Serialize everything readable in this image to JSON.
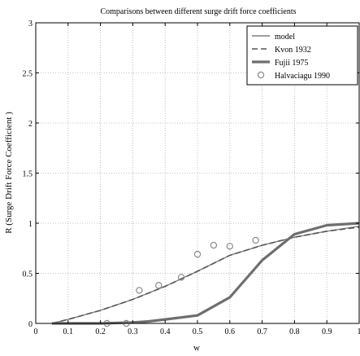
{
  "chart_data": {
    "type": "line",
    "title": "Comparisons between different surge drift force coefficients",
    "xlabel": "w",
    "ylabel": "R (Surge Drift Force Coefficient )",
    "xlim": [
      0,
      1
    ],
    "ylim": [
      0,
      3
    ],
    "xticks": [
      0,
      0.1,
      0.2,
      0.3,
      0.4,
      0.5,
      0.6,
      0.7,
      0.8,
      0.9,
      1
    ],
    "xtick_labels": [
      "0",
      "0.1",
      "0.2",
      "0.3",
      "0.4",
      "0.5",
      "0.6",
      "0.7",
      "0.8",
      "0.9",
      "1"
    ],
    "yticks": [
      0,
      0.5,
      1,
      1.5,
      2,
      2.5,
      3
    ],
    "ytick_labels": [
      "0",
      "0.5",
      "1",
      "1.5",
      "2",
      "2.5",
      "3"
    ],
    "grid": true,
    "legend_position": "top-right",
    "series": [
      {
        "name": "model",
        "style": "line",
        "color": "#7f7f7f",
        "x": [
          0.05,
          0.1,
          0.2,
          0.3,
          0.4,
          0.5,
          0.6,
          0.7,
          0.8,
          0.9,
          1.0
        ],
        "y": [
          0.0,
          0.04,
          0.13,
          0.24,
          0.37,
          0.52,
          0.68,
          0.78,
          0.86,
          0.92,
          0.97
        ]
      },
      {
        "name": "Kvon 1932",
        "style": "dash",
        "color": "#555555",
        "x": [
          0.05,
          0.1,
          0.2,
          0.3,
          0.4,
          0.5,
          0.6,
          0.7,
          0.8,
          0.9,
          1.0
        ],
        "y": [
          0.0,
          0.04,
          0.13,
          0.24,
          0.37,
          0.52,
          0.68,
          0.78,
          0.86,
          0.92,
          0.96
        ]
      },
      {
        "name": "Fujii 1975",
        "style": "thick-line",
        "color": "#6e6e6e",
        "x": [
          0.05,
          0.1,
          0.2,
          0.3,
          0.35,
          0.4,
          0.5,
          0.6,
          0.7,
          0.8,
          0.9,
          1.0
        ],
        "y": [
          0.0,
          0.0,
          0.0,
          0.01,
          0.02,
          0.04,
          0.08,
          0.26,
          0.63,
          0.89,
          0.98,
          1.0
        ]
      },
      {
        "name": "Halvaciagu 1990",
        "style": "circle",
        "color": "#8a8a8a",
        "x": [
          0.22,
          0.28,
          0.32,
          0.38,
          0.45,
          0.5,
          0.55,
          0.6,
          0.68
        ],
        "y": [
          0.0,
          0.0,
          0.33,
          0.38,
          0.46,
          0.69,
          0.78,
          0.77,
          0.83
        ]
      }
    ]
  }
}
